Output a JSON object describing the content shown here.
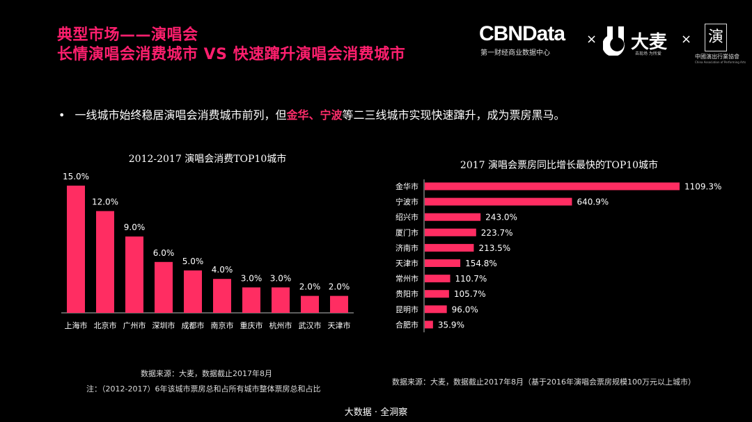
{
  "header": {
    "title_line1": "典型市场——演唱会",
    "title_line2": "长情演唱会消费城市 VS 快速蹿升演唱会消费城市"
  },
  "logos": {
    "cbndata": "CBNData",
    "cbndata_sub": "第一财经商业数据中心",
    "times": "×",
    "damai": "大麦",
    "damai_sub": "去现场 为所爱",
    "capa_mark": "演",
    "capa": "中國演出行業協會",
    "capa_en": "China Association of Performing Arts"
  },
  "bullet": {
    "symbol": "•",
    "part1": "一线城市始终稳居演唱会消费城市前列，但",
    "highlight": "金华、宁波",
    "part2": "等二三线城市实现快速蹿升，成为票房黑马。"
  },
  "colors": {
    "accent": "#ff1f6e",
    "bar": "#ff2d62",
    "background": "#000000"
  },
  "chart_data": [
    {
      "type": "bar",
      "orientation": "vertical",
      "title": "2012-2017 演唱会消费TOP10城市",
      "categories": [
        "上海市",
        "北京市",
        "广州市",
        "深圳市",
        "成都市",
        "南京市",
        "重庆市",
        "杭州市",
        "武汉市",
        "天津市"
      ],
      "values": [
        15.0,
        12.0,
        9.0,
        6.0,
        5.0,
        4.0,
        3.0,
        3.0,
        2.0,
        2.0
      ],
      "labels": [
        "15.0%",
        "12.0%",
        "9.0%",
        "6.0%",
        "5.0%",
        "4.0%",
        "3.0%",
        "3.0%",
        "2.0%",
        "2.0%"
      ],
      "ylim": [
        0,
        15
      ],
      "grid": false
    },
    {
      "type": "bar",
      "orientation": "horizontal",
      "title": "2017 演唱会票房同比增长最快的TOP10城市",
      "categories": [
        "金华市",
        "宁波市",
        "绍兴市",
        "厦门市",
        "济南市",
        "天津市",
        "常州市",
        "贵阳市",
        "昆明市",
        "合肥市"
      ],
      "values": [
        1109.3,
        640.9,
        243.0,
        223.7,
        213.5,
        154.8,
        110.7,
        105.7,
        96.0,
        35.9
      ],
      "labels": [
        "1109.3%",
        "640.9%",
        "243.0%",
        "223.7%",
        "213.5%",
        "154.8%",
        "110.7%",
        "105.7%",
        "96.0%",
        "35.9%"
      ],
      "xlim": [
        0,
        1109.3
      ],
      "grid": false
    }
  ],
  "notes": {
    "left_source": "数据来源：大麦，数据截止2017年8月",
    "left_note": "注：（2012-2017）6年该城市票房总和占所有城市整体票房总和占比",
    "right_source": "数据来源：大麦，数据截止2017年8月（基于2016年演唱会票房规模100万元以上城市）"
  },
  "footer": "大数据 · 全洞察"
}
